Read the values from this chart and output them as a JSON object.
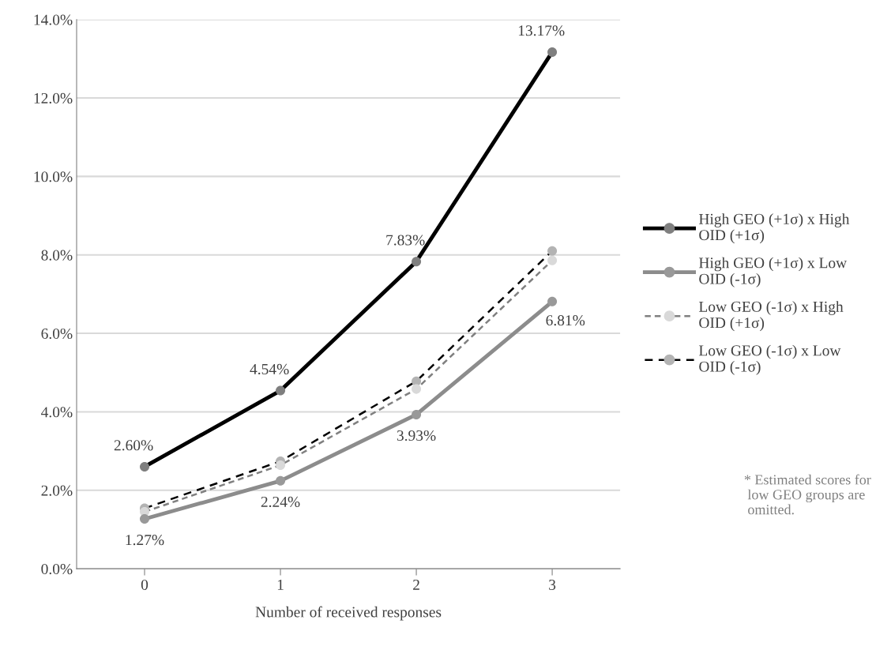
{
  "chart_data": {
    "type": "line",
    "xlabel": "Number of received responses",
    "categories": [
      "0",
      "1",
      "2",
      "3"
    ],
    "ylim": [
      0,
      14
    ],
    "yticks": [
      {
        "value": 0,
        "label": "0.0%"
      },
      {
        "value": 2,
        "label": "2.0%"
      },
      {
        "value": 4,
        "label": "4.0%"
      },
      {
        "value": 6,
        "label": "6.0%"
      },
      {
        "value": 8,
        "label": "8.0%"
      },
      {
        "value": 10,
        "label": "10.0%"
      },
      {
        "value": 12,
        "label": "12.0%"
      },
      {
        "value": 14,
        "label": "14.0%"
      }
    ],
    "grid": "y",
    "legend": "right",
    "marker": "circle",
    "series": [
      {
        "name": "High GEO (+1σ) x High\nOID (+1σ)",
        "color": "#000000",
        "colors": [
          "#7f7f7f",
          "#7f7f7f",
          "#7f7f7f",
          "#7f7f7f"
        ],
        "line_style": "solid",
        "values": [
          2.6,
          4.54,
          7.83,
          13.17
        ],
        "value_labels": [
          "2.60%",
          "4.54%",
          "7.83%",
          "13.17%"
        ]
      },
      {
        "name": "High GEO (+1σ) x Low\nOID (-1σ)",
        "color": "#8c8c8c",
        "colors": [
          "#999999",
          "#999999",
          "#999999",
          "#999999"
        ],
        "line_style": "solid",
        "values": [
          1.27,
          2.24,
          3.93,
          6.81
        ],
        "value_labels": [
          "1.27%",
          "2.24%",
          "3.93%",
          "6.81%"
        ]
      },
      {
        "name": "Low GEO (-1σ) x High\nOID (+1σ)",
        "color": "#808080",
        "colors": [
          "#d9d9d9",
          "#d9d9d9",
          "#d9d9d9",
          "#d9d9d9"
        ],
        "line_style": "dashed",
        "values": [
          1.45,
          2.64,
          4.58,
          7.86
        ]
      },
      {
        "name": "Low GEO (-1σ) x Low\nOID (-1σ)",
        "color": "#000000",
        "colors": [
          "#b3b3b3",
          "#b3b3b3",
          "#b3b3b3",
          "#b3b3b3"
        ],
        "line_style": "dashed",
        "values": [
          1.54,
          2.74,
          4.78,
          8.1
        ]
      }
    ],
    "annotations": [
      "* Estimated scores for\n low GEO groups are\n omitted."
    ]
  }
}
